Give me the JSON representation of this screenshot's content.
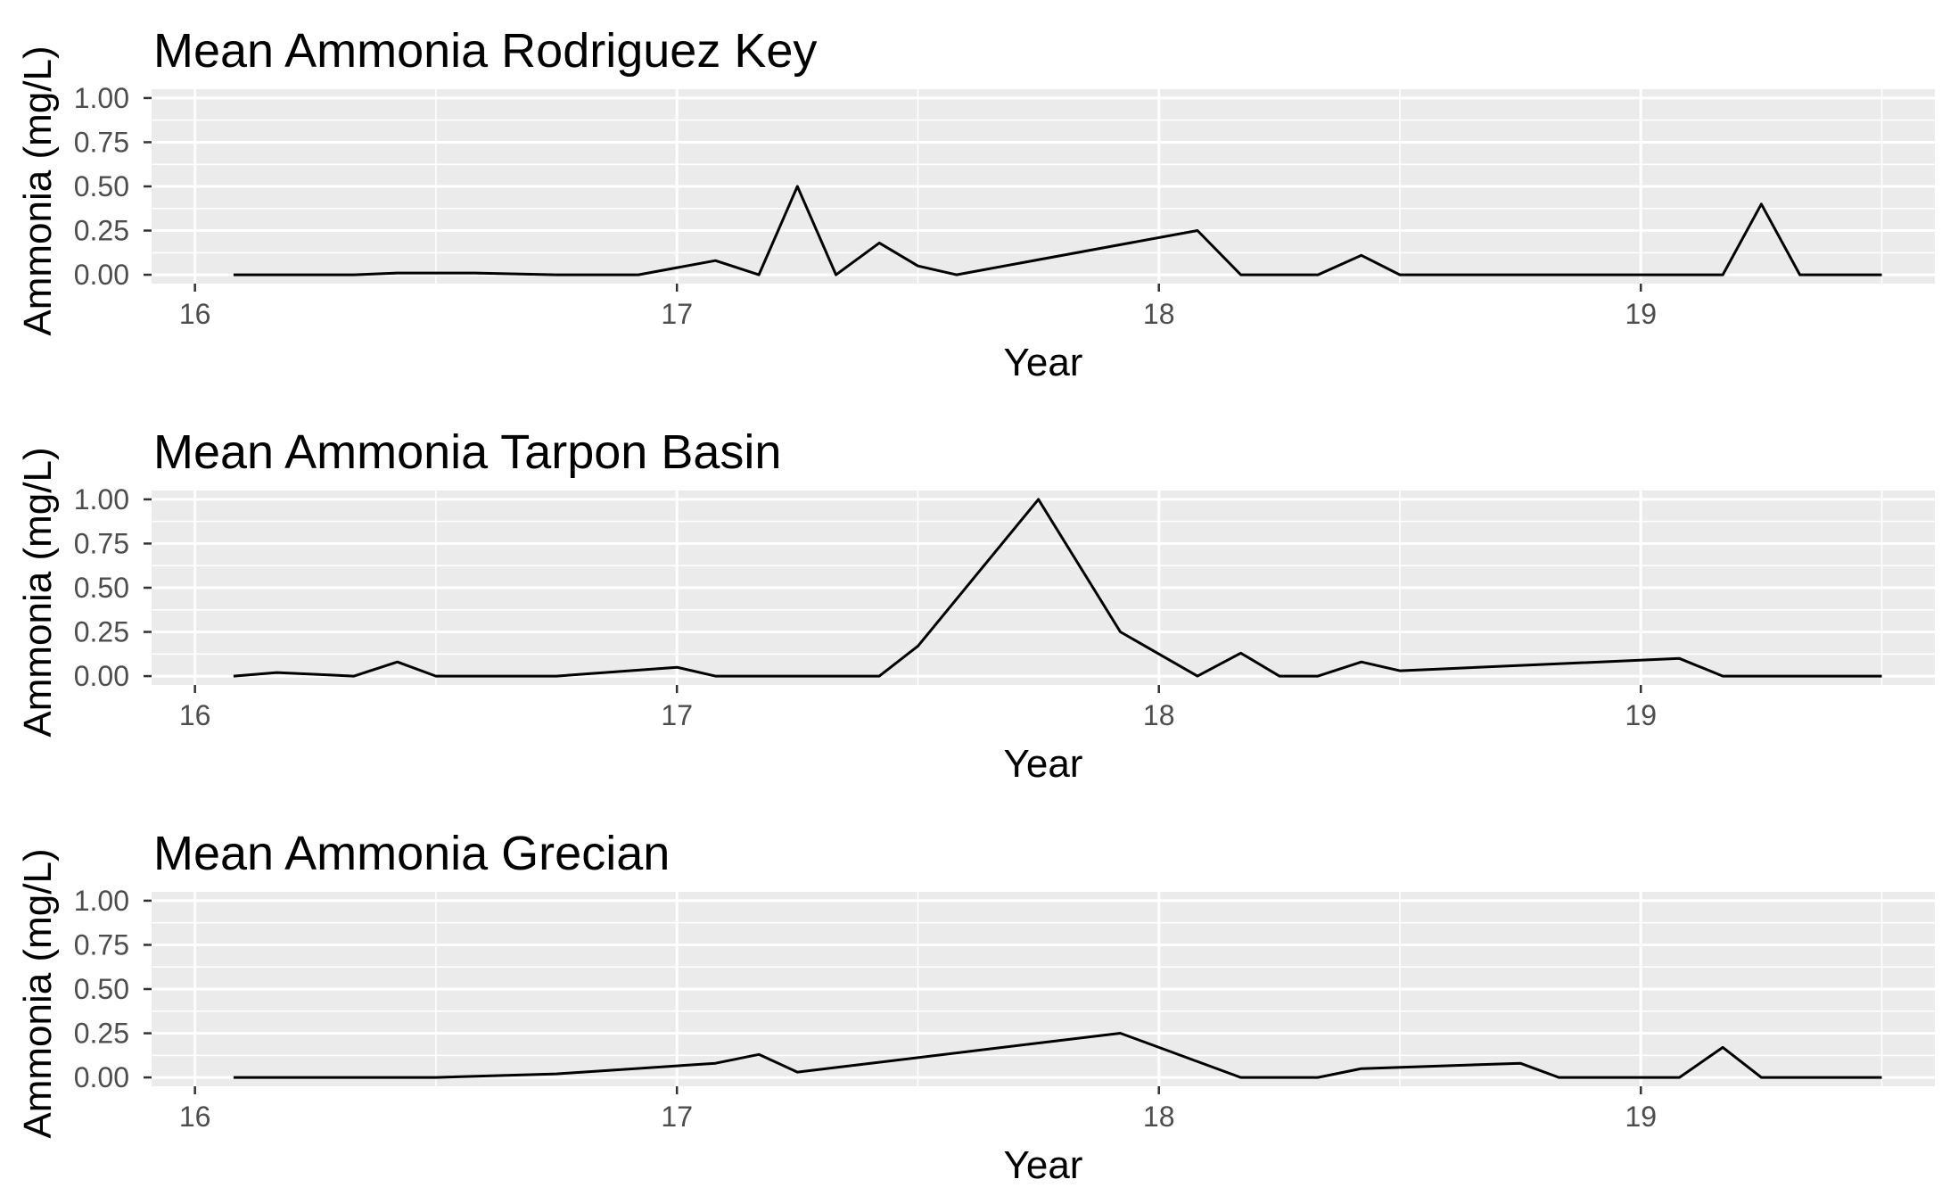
{
  "chart_data": [
    {
      "type": "line",
      "title": "Mean Ammonia Rodriguez Key",
      "xlabel": "Year",
      "ylabel": "Ammonia (mg/L)",
      "xlim": [
        15.91,
        19.61
      ],
      "ylim": [
        -0.05,
        1.05
      ],
      "xticks": [
        "16",
        "17",
        "18",
        "19"
      ],
      "yticks": [
        "0.00",
        "0.25",
        "0.50",
        "0.75",
        "1.00"
      ],
      "grid": true,
      "x": [
        16.08,
        16.25,
        16.33,
        16.42,
        16.58,
        16.75,
        16.92,
        17.08,
        17.17,
        17.25,
        17.33,
        17.42,
        17.5,
        17.58,
        18.08,
        18.17,
        18.33,
        18.42,
        18.5,
        19.17,
        19.25,
        19.33,
        19.5
      ],
      "y": [
        0,
        0,
        0,
        0.01,
        0.01,
        0,
        0,
        0.08,
        0,
        0.5,
        0,
        0.18,
        0.05,
        0,
        0.25,
        0,
        0,
        0.11,
        0,
        0,
        0.4,
        0,
        0
      ]
    },
    {
      "type": "line",
      "title": "Mean Ammonia Tarpon Basin",
      "xlabel": "Year",
      "ylabel": "Ammonia (mg/L)",
      "xlim": [
        15.91,
        19.61
      ],
      "ylim": [
        -0.05,
        1.05
      ],
      "xticks": [
        "16",
        "17",
        "18",
        "19"
      ],
      "yticks": [
        "0.00",
        "0.25",
        "0.50",
        "0.75",
        "1.00"
      ],
      "grid": true,
      "x": [
        16.08,
        16.17,
        16.33,
        16.42,
        16.5,
        16.75,
        17.0,
        17.08,
        17.42,
        17.5,
        17.75,
        17.92,
        18.08,
        18.17,
        18.25,
        18.33,
        18.42,
        18.5,
        19.08,
        19.17,
        19.5
      ],
      "y": [
        0,
        0.02,
        0,
        0.08,
        0,
        0,
        0.05,
        0,
        0,
        0.17,
        1.0,
        0.25,
        0,
        0.13,
        0,
        0,
        0.08,
        0.03,
        0.1,
        0,
        0
      ]
    },
    {
      "type": "line",
      "title": "Mean Ammonia Grecian",
      "xlabel": "Year",
      "ylabel": "Ammonia (mg/L)",
      "xlim": [
        15.91,
        19.61
      ],
      "ylim": [
        -0.05,
        1.05
      ],
      "xticks": [
        "16",
        "17",
        "18",
        "19"
      ],
      "yticks": [
        "0.00",
        "0.25",
        "0.50",
        "0.75",
        "1.00"
      ],
      "grid": true,
      "x": [
        16.08,
        16.5,
        16.75,
        17.08,
        17.17,
        17.25,
        17.92,
        18.17,
        18.33,
        18.42,
        18.75,
        18.83,
        19.08,
        19.17,
        19.25,
        19.5
      ],
      "y": [
        0,
        0,
        0.02,
        0.08,
        0.13,
        0.03,
        0.25,
        0,
        0,
        0.05,
        0.08,
        0,
        0,
        0.17,
        0,
        0
      ]
    }
  ]
}
